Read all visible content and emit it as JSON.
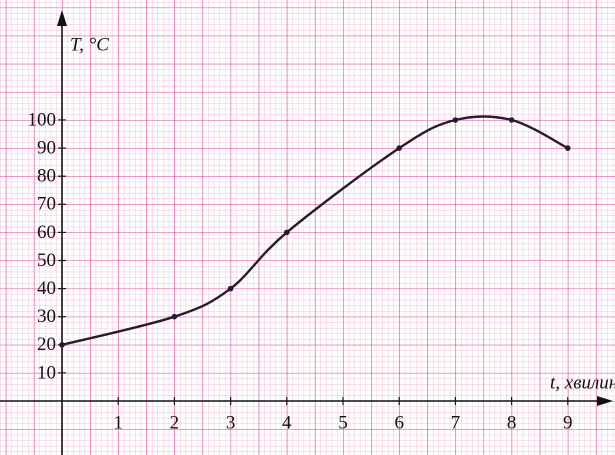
{
  "chart_data": {
    "type": "line",
    "y_label": "T, °C",
    "x_label": "t, хвилин",
    "x": [
      0,
      2,
      3,
      4,
      6,
      7,
      8,
      9
    ],
    "series": [
      {
        "color": "#2a1a2e",
        "values": [
          20,
          30,
          40,
          60,
          90,
          100,
          100,
          90
        ]
      }
    ],
    "xlim": [
      0,
      9.84
    ],
    "ylim": [
      0,
      100
    ],
    "xticks": [
      1,
      2,
      3,
      4,
      5,
      6,
      7,
      8,
      9
    ],
    "yticks": [
      10,
      20,
      30,
      40,
      50,
      60,
      70,
      80,
      90,
      100
    ],
    "grid": true
  }
}
